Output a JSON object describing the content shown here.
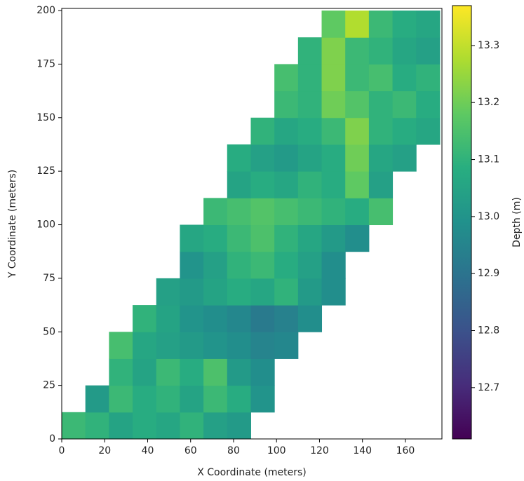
{
  "chart_data": {
    "type": "heatmap",
    "xlabel": "X Coordinate (meters)",
    "ylabel": "Y Coordinate (meters)",
    "colorbar_label": "Depth (m)",
    "colormap": "viridis",
    "xbins": [
      0,
      11,
      22,
      33,
      44,
      55,
      66,
      77,
      88,
      99,
      110,
      121,
      132,
      143,
      154,
      165,
      176
    ],
    "ybins": [
      0,
      12.5,
      25,
      37.5,
      50,
      62.5,
      75,
      87.5,
      100,
      112.5,
      125,
      137.5,
      150,
      162.5,
      175,
      187.5,
      200
    ],
    "values": [
      [
        13.12,
        13.1,
        13.05,
        13.08,
        13.06,
        13.1,
        13.04,
        13.02,
        null,
        null,
        null,
        null,
        null,
        null,
        null,
        null
      ],
      [
        null,
        13.02,
        13.12,
        13.08,
        13.1,
        13.05,
        13.12,
        13.08,
        13.0,
        null,
        null,
        null,
        null,
        null,
        null,
        null
      ],
      [
        null,
        null,
        13.1,
        13.05,
        13.12,
        13.08,
        13.15,
        13.02,
        12.98,
        null,
        null,
        null,
        null,
        null,
        null,
        null
      ],
      [
        null,
        null,
        13.14,
        13.06,
        13.04,
        13.02,
        13.0,
        12.98,
        12.95,
        12.96,
        null,
        null,
        null,
        null,
        null,
        null
      ],
      [
        null,
        null,
        null,
        13.1,
        13.05,
        13.0,
        12.98,
        12.96,
        12.92,
        12.94,
        12.98,
        null,
        null,
        null,
        null,
        null
      ],
      [
        null,
        null,
        null,
        null,
        13.04,
        13.02,
        13.05,
        13.08,
        13.06,
        13.1,
        13.02,
        12.98,
        null,
        null,
        null,
        null
      ],
      [
        null,
        null,
        null,
        null,
        null,
        13.0,
        13.04,
        13.1,
        13.12,
        13.08,
        13.04,
        12.98,
        null,
        null,
        null,
        null
      ],
      [
        null,
        null,
        null,
        null,
        null,
        13.06,
        13.08,
        13.12,
        13.15,
        13.1,
        13.06,
        13.02,
        12.98,
        null,
        null,
        null
      ],
      [
        null,
        null,
        null,
        null,
        null,
        null,
        13.12,
        13.14,
        13.16,
        13.14,
        13.12,
        13.1,
        13.08,
        13.14,
        null,
        null
      ],
      [
        null,
        null,
        null,
        null,
        null,
        null,
        null,
        13.05,
        13.08,
        13.06,
        13.1,
        13.08,
        13.18,
        13.04,
        null,
        null
      ],
      [
        null,
        null,
        null,
        null,
        null,
        null,
        null,
        13.08,
        13.04,
        13.02,
        13.05,
        13.08,
        13.2,
        13.06,
        13.04,
        null
      ],
      [
        null,
        null,
        null,
        null,
        null,
        null,
        null,
        null,
        13.1,
        13.06,
        13.08,
        13.12,
        13.22,
        13.1,
        13.08,
        13.06
      ],
      [
        null,
        null,
        null,
        null,
        null,
        null,
        null,
        null,
        null,
        13.12,
        13.1,
        13.2,
        13.16,
        13.1,
        13.12,
        13.08
      ],
      [
        null,
        null,
        null,
        null,
        null,
        null,
        null,
        null,
        null,
        13.14,
        13.1,
        13.22,
        13.12,
        13.14,
        13.08,
        13.1
      ],
      [
        null,
        null,
        null,
        null,
        null,
        null,
        null,
        null,
        null,
        null,
        13.1,
        13.22,
        13.12,
        13.1,
        13.06,
        13.04
      ],
      [
        null,
        null,
        null,
        null,
        null,
        null,
        null,
        null,
        null,
        null,
        null,
        13.18,
        13.28,
        13.12,
        13.08,
        13.06
      ]
    ],
    "xlim": [
      0,
      177
    ],
    "ylim": [
      0,
      201
    ],
    "xticks": [
      0,
      20,
      40,
      60,
      80,
      100,
      120,
      140,
      160
    ],
    "yticks": [
      0,
      25,
      50,
      75,
      100,
      125,
      150,
      175,
      200
    ],
    "clim": [
      12.61,
      13.37
    ],
    "cticks": [
      12.7,
      12.8,
      12.9,
      {
        "value": 13,
        "label": "13.0"
      },
      13.1,
      13.2,
      13.3
    ]
  }
}
